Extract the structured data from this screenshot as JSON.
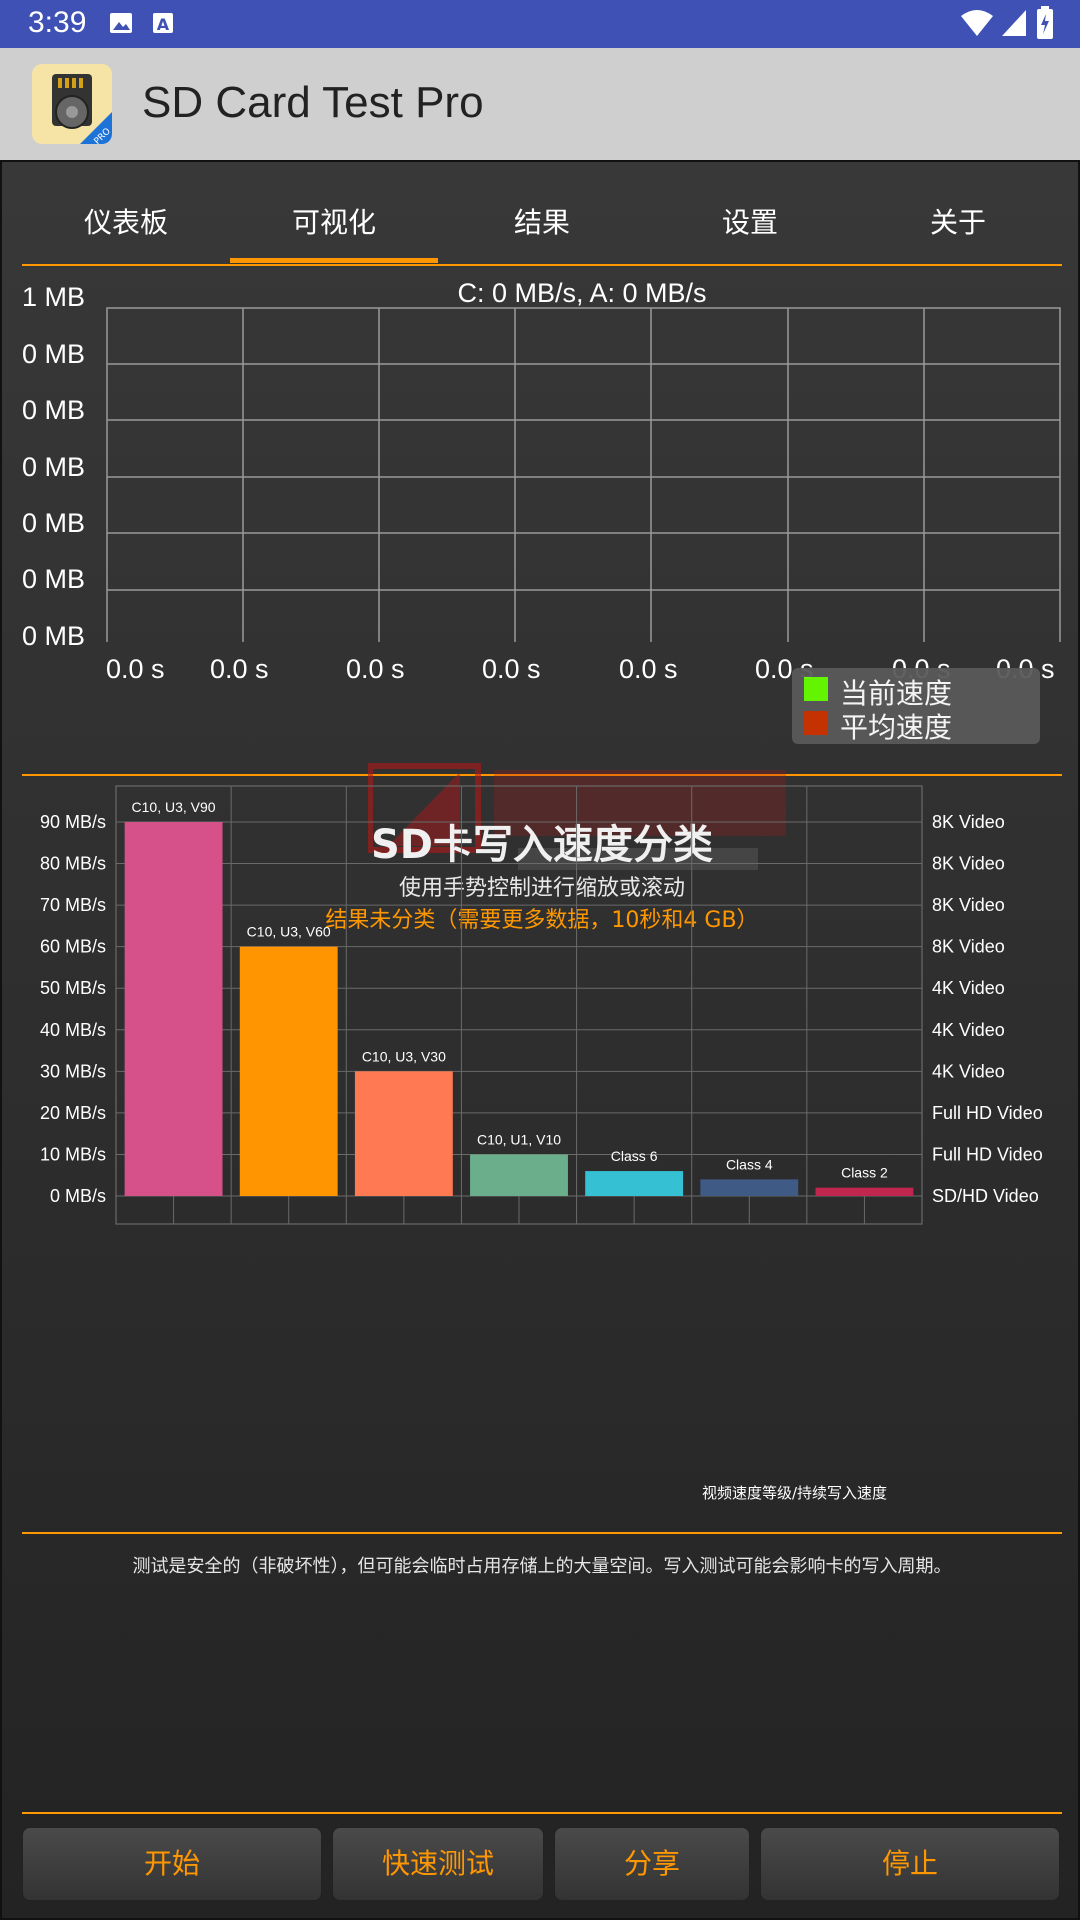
{
  "status_bar": {
    "time": "3:39"
  },
  "app": {
    "title": "SD Card Test Pro"
  },
  "tabs": [
    {
      "label": "仪表板"
    },
    {
      "label": "可视化"
    },
    {
      "label": "结果"
    },
    {
      "label": "设置"
    },
    {
      "label": "关于"
    }
  ],
  "active_tab_index": 1,
  "speed_chart": {
    "title": "C: 0 MB/s, A: 0 MB/s",
    "y_labels": [
      "1 MB",
      "0 MB",
      "0 MB",
      "0 MB",
      "0 MB",
      "0 MB",
      "0 MB"
    ],
    "x_labels": [
      "0.0 s",
      "0.0 s",
      "0.0 s",
      "0.0 s",
      "0.0 s",
      "0.0 s",
      "0.0 s",
      "0.0 s"
    ],
    "legend": [
      {
        "label": "当前速度",
        "color": "#66FF00"
      },
      {
        "label": "平均速度",
        "color": "#CC3300"
      }
    ]
  },
  "classification": {
    "title": "SD卡写入速度分类",
    "subtitle": "使用手势控制进行缩放或滚动",
    "note": "结果未分类（需要更多数据，10秒和4 GB）",
    "caption": "视频速度等级/持续写入速度"
  },
  "chart_data": {
    "type": "bar",
    "categories": [
      "C10, U3, V90",
      "C10, U3, V60",
      "C10, U3, V30",
      "C10, U1, V10",
      "Class 6",
      "Class 4",
      "Class 2"
    ],
    "values": [
      90,
      60,
      30,
      10,
      6,
      4,
      2
    ],
    "colors": [
      "#D6508A",
      "#FF9500",
      "#FF7A52",
      "#6AAE8C",
      "#35C0D4",
      "#405A86",
      "#C0264E"
    ],
    "ylim": [
      0,
      90
    ],
    "y_ticks": [
      "0 MB/s",
      "10 MB/s",
      "20 MB/s",
      "30 MB/s",
      "40 MB/s",
      "50 MB/s",
      "60 MB/s",
      "70 MB/s",
      "80 MB/s",
      "90 MB/s"
    ],
    "right_labels": [
      "SD/HD Video",
      "Full HD Video",
      "Full HD Video",
      "4K Video",
      "4K Video",
      "4K Video",
      "8K Video",
      "8K Video",
      "8K Video",
      "8K Video"
    ],
    "xlabel": "视频速度等级/持续写入速度"
  },
  "footer": {
    "text": "测试是安全的（非破坏性），但可能会临时占用存储上的大量空间。写入测试可能会影响卡的写入周期。"
  },
  "buttons": {
    "start": "开始",
    "quick_test": "快速测试",
    "share": "分享",
    "stop": "停止"
  }
}
